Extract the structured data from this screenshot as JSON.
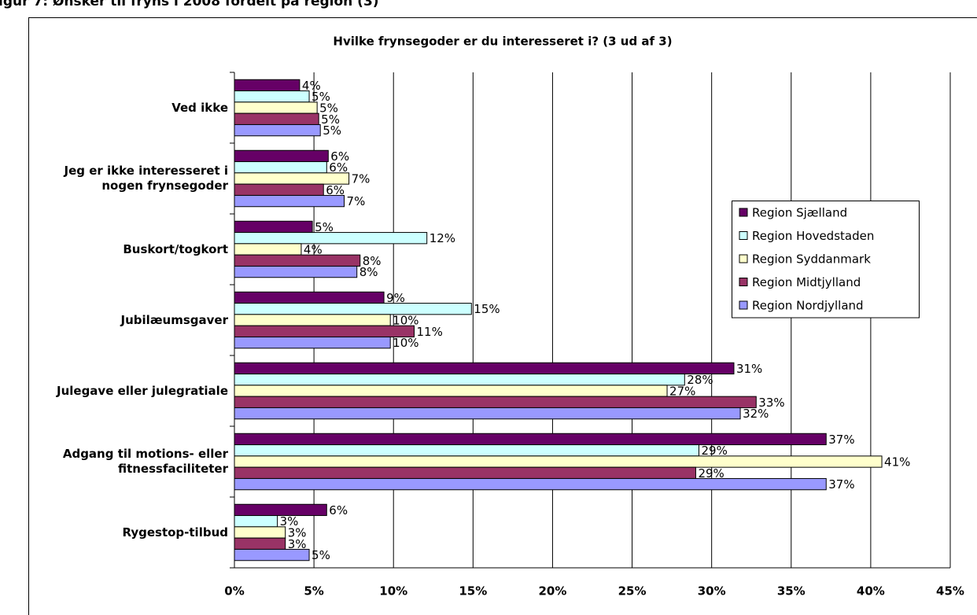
{
  "heading": "igur 7: Ønsker til fryns i 2008 fordelt på region (3)",
  "chart_data": {
    "type": "hbar",
    "title": "Hvilke frynsegoder er du interesseret i? (3 ud af 3)",
    "categories": [
      "Ved ikke",
      "Jeg er ikke interesseret i nogen frynsegoder",
      "Buskort/togkort",
      "Jubilæumsgaver",
      "Julegave eller julegratiale",
      "Adgang til motions- eller fitnessfaciliteter",
      "Rygestop-tilbud"
    ],
    "series": [
      {
        "name": "Region Sjælland",
        "color": "#660066",
        "values": [
          4.1,
          5.9,
          4.9,
          9.4,
          31.4,
          37.2,
          5.8
        ],
        "value_labels": [
          "4%",
          "6%",
          "5%",
          "9%",
          "31%",
          "37%",
          "6%"
        ]
      },
      {
        "name": "Region Hovedstaden",
        "color": "#ccffff",
        "values": [
          4.7,
          5.8,
          12.1,
          14.9,
          28.3,
          29.2,
          2.7
        ],
        "value_labels": [
          "5%",
          "6%",
          "12%",
          "15%",
          "28%",
          "29%",
          "3%"
        ]
      },
      {
        "name": "Region Syddanmark",
        "color": "#ffffcc",
        "values": [
          5.2,
          7.2,
          4.2,
          9.8,
          27.2,
          40.7,
          3.2
        ],
        "value_labels": [
          "5%",
          "7%",
          "4%",
          "10%",
          "27%",
          "41%",
          "3%"
        ]
      },
      {
        "name": "Region Midtjylland",
        "color": "#993366",
        "values": [
          5.3,
          5.6,
          7.9,
          11.3,
          32.8,
          29.0,
          3.2
        ],
        "value_labels": [
          "5%",
          "6%",
          "8%",
          "11%",
          "33%",
          "29%",
          "3%"
        ]
      },
      {
        "name": "Region Nordjylland",
        "color": "#9999ff",
        "values": [
          5.4,
          6.9,
          7.7,
          9.8,
          31.8,
          37.2,
          4.7
        ],
        "value_labels": [
          "5%",
          "7%",
          "8%",
          "10%",
          "32%",
          "37%",
          "5%"
        ]
      }
    ],
    "xlim": [
      0,
      45
    ],
    "xticks": [
      {
        "value": 0,
        "label": "0%"
      },
      {
        "value": 5,
        "label": "5%"
      },
      {
        "value": 10,
        "label": "10%"
      },
      {
        "value": 15,
        "label": "15%"
      },
      {
        "value": 20,
        "label": "20%"
      },
      {
        "value": 25,
        "label": "25%"
      },
      {
        "value": 30,
        "label": "30%"
      },
      {
        "value": 35,
        "label": "35%"
      },
      {
        "value": 40,
        "label": "40%"
      },
      {
        "value": 45,
        "label": "45%"
      }
    ],
    "grid": true,
    "legend": "right"
  }
}
